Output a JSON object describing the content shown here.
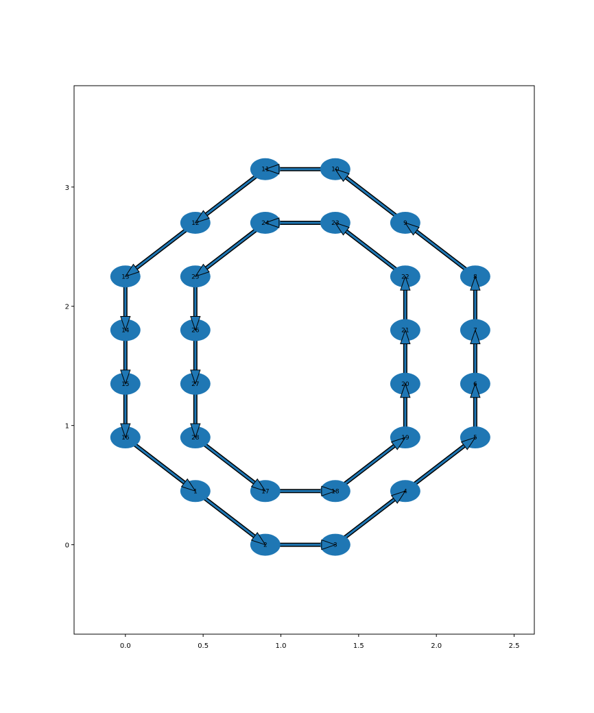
{
  "chart_data": {
    "type": "graph",
    "title": "",
    "xlabel": "",
    "ylabel": "",
    "xlim": [
      -0.33,
      2.63
    ],
    "ylim": [
      -0.75,
      3.85
    ],
    "grid": false,
    "x_ticks": [
      0.0,
      0.5,
      1.0,
      1.5,
      2.0,
      2.5
    ],
    "x_tick_labels": [
      "0.0",
      "0.5",
      "1.0",
      "1.5",
      "2.0",
      "2.5"
    ],
    "y_ticks": [
      0,
      1,
      2,
      3
    ],
    "y_tick_labels": [
      "0",
      "1",
      "2",
      "3"
    ],
    "node_color": "#1f77b4",
    "edge_color": "#000000",
    "nodes": [
      {
        "id": "1",
        "x": 0.45,
        "y": 0.45
      },
      {
        "id": "2",
        "x": 0.9,
        "y": 0.0
      },
      {
        "id": "3",
        "x": 1.35,
        "y": 0.0
      },
      {
        "id": "4",
        "x": 1.8,
        "y": 0.45
      },
      {
        "id": "5",
        "x": 2.25,
        "y": 0.9
      },
      {
        "id": "6",
        "x": 2.25,
        "y": 1.35
      },
      {
        "id": "7",
        "x": 2.25,
        "y": 1.8
      },
      {
        "id": "8",
        "x": 2.25,
        "y": 2.25
      },
      {
        "id": "9",
        "x": 1.8,
        "y": 2.7
      },
      {
        "id": "10",
        "x": 1.35,
        "y": 3.15
      },
      {
        "id": "11",
        "x": 0.9,
        "y": 3.15
      },
      {
        "id": "12",
        "x": 0.45,
        "y": 2.7
      },
      {
        "id": "13",
        "x": 0.0,
        "y": 2.25
      },
      {
        "id": "14",
        "x": 0.0,
        "y": 1.8
      },
      {
        "id": "15",
        "x": 0.0,
        "y": 1.35
      },
      {
        "id": "16",
        "x": 0.0,
        "y": 0.9
      },
      {
        "id": "17",
        "x": 0.9,
        "y": 0.45
      },
      {
        "id": "18",
        "x": 1.35,
        "y": 0.45
      },
      {
        "id": "19",
        "x": 1.8,
        "y": 0.9
      },
      {
        "id": "20",
        "x": 1.8,
        "y": 1.35
      },
      {
        "id": "21",
        "x": 1.8,
        "y": 1.8
      },
      {
        "id": "22",
        "x": 1.8,
        "y": 2.25
      },
      {
        "id": "23",
        "x": 1.35,
        "y": 2.7
      },
      {
        "id": "24",
        "x": 0.9,
        "y": 2.7
      },
      {
        "id": "25",
        "x": 0.45,
        "y": 2.25
      },
      {
        "id": "26",
        "x": 0.45,
        "y": 1.8
      },
      {
        "id": "27",
        "x": 0.45,
        "y": 1.35
      },
      {
        "id": "28",
        "x": 0.45,
        "y": 0.9
      }
    ],
    "edges": [
      [
        "1",
        "2"
      ],
      [
        "2",
        "3"
      ],
      [
        "3",
        "4"
      ],
      [
        "4",
        "5"
      ],
      [
        "5",
        "6"
      ],
      [
        "6",
        "7"
      ],
      [
        "7",
        "8"
      ],
      [
        "8",
        "9"
      ],
      [
        "9",
        "10"
      ],
      [
        "10",
        "11"
      ],
      [
        "11",
        "12"
      ],
      [
        "12",
        "13"
      ],
      [
        "13",
        "14"
      ],
      [
        "14",
        "15"
      ],
      [
        "15",
        "16"
      ],
      [
        "16",
        "1"
      ],
      [
        "17",
        "18"
      ],
      [
        "18",
        "19"
      ],
      [
        "19",
        "20"
      ],
      [
        "20",
        "21"
      ],
      [
        "21",
        "22"
      ],
      [
        "22",
        "23"
      ],
      [
        "23",
        "24"
      ],
      [
        "24",
        "25"
      ],
      [
        "25",
        "26"
      ],
      [
        "26",
        "27"
      ],
      [
        "27",
        "28"
      ],
      [
        "28",
        "17"
      ]
    ]
  }
}
